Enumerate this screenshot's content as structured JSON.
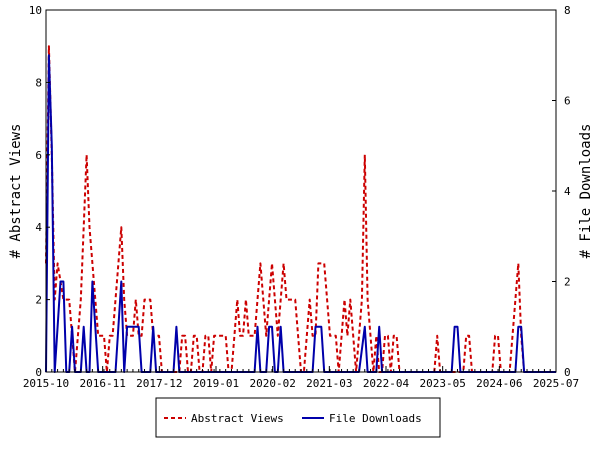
{
  "chart_data": {
    "type": "line",
    "xlabel": "",
    "ylabel_left": "# Abstract Views",
    "ylabel_right": "# File Downloads",
    "x_ticks": [
      "2015-10",
      "2016-11",
      "2017-12",
      "2019-01",
      "2020-02",
      "2021-03",
      "2022-04",
      "2023-05",
      "2024-06",
      "2025-07"
    ],
    "y_left_ticks": [
      "0",
      "2",
      "4",
      "6",
      "8",
      "10"
    ],
    "y_right_ticks": [
      "0",
      "2",
      "4",
      "6",
      "8"
    ],
    "ylim_left": [
      0,
      10
    ],
    "ylim_right": [
      0,
      8
    ],
    "grid": false,
    "legend_position": "bottom",
    "series": [
      {
        "name": "Abstract Views",
        "axis": "left",
        "color": "#cc0000",
        "dash": true,
        "points": [
          [
            0,
            3
          ],
          [
            0.5,
            9
          ],
          [
            1,
            6
          ],
          [
            1.5,
            2
          ],
          [
            2,
            3
          ],
          [
            2.5,
            2.5
          ],
          [
            3,
            2
          ],
          [
            4,
            2
          ],
          [
            4.5,
            1
          ],
          [
            5,
            0
          ],
          [
            5.5,
            1
          ],
          [
            6,
            2
          ],
          [
            6.5,
            4
          ],
          [
            7,
            6
          ],
          [
            7.5,
            4
          ],
          [
            8,
            3
          ],
          [
            8.5,
            2
          ],
          [
            9,
            1
          ],
          [
            10,
            1
          ],
          [
            10.5,
            0
          ],
          [
            11,
            1
          ],
          [
            11.5,
            1
          ],
          [
            12,
            2
          ],
          [
            12.5,
            3
          ],
          [
            13,
            4
          ],
          [
            13.5,
            2
          ],
          [
            14,
            1
          ],
          [
            14.5,
            1
          ],
          [
            15,
            1
          ],
          [
            15.5,
            2
          ],
          [
            16,
            1
          ],
          [
            16.5,
            1
          ],
          [
            17,
            2
          ],
          [
            18,
            2
          ],
          [
            18.5,
            1
          ],
          [
            19,
            1
          ],
          [
            19.5,
            1
          ],
          [
            20,
            0
          ],
          [
            21,
            0
          ],
          [
            22,
            0
          ],
          [
            23,
            0
          ],
          [
            23.5,
            1
          ],
          [
            24,
            1
          ],
          [
            24.5,
            0
          ],
          [
            25,
            0
          ],
          [
            25.5,
            1
          ],
          [
            26,
            1
          ],
          [
            26.5,
            0
          ],
          [
            27,
            0
          ],
          [
            27.5,
            1
          ],
          [
            28,
            1
          ],
          [
            28.5,
            0
          ],
          [
            29,
            1
          ],
          [
            29.5,
            1
          ],
          [
            30,
            1
          ],
          [
            31,
            1
          ],
          [
            31.5,
            0
          ],
          [
            32,
            0
          ],
          [
            32.5,
            1
          ],
          [
            33,
            2
          ],
          [
            33.5,
            1
          ],
          [
            34,
            1
          ],
          [
            34.5,
            2
          ],
          [
            35,
            1
          ],
          [
            35.5,
            1
          ],
          [
            36,
            1
          ],
          [
            36.5,
            2
          ],
          [
            37,
            3
          ],
          [
            37.5,
            2
          ],
          [
            38,
            1
          ],
          [
            38.5,
            2
          ],
          [
            39,
            3
          ],
          [
            39.5,
            2
          ],
          [
            40,
            1
          ],
          [
            40.5,
            2
          ],
          [
            41,
            3
          ],
          [
            41.5,
            2
          ],
          [
            42,
            2
          ],
          [
            42.5,
            2
          ],
          [
            43,
            2
          ],
          [
            44,
            0
          ],
          [
            44.5,
            0
          ],
          [
            45,
            1
          ],
          [
            45.5,
            2
          ],
          [
            46,
            1
          ],
          [
            46.5,
            1
          ],
          [
            47,
            3
          ],
          [
            48,
            3
          ],
          [
            48.5,
            2
          ],
          [
            49,
            1
          ],
          [
            50,
            1
          ],
          [
            50.5,
            0
          ],
          [
            51,
            1
          ],
          [
            51.5,
            2
          ],
          [
            52,
            1
          ],
          [
            52.5,
            2
          ],
          [
            53,
            1
          ],
          [
            53.5,
            0
          ],
          [
            54,
            1
          ],
          [
            54.5,
            2
          ],
          [
            55,
            6
          ],
          [
            55.5,
            2
          ],
          [
            56,
            1
          ],
          [
            56.5,
            0
          ],
          [
            57,
            1
          ],
          [
            57.5,
            0
          ],
          [
            58,
            0
          ],
          [
            58.5,
            1
          ],
          [
            59,
            1
          ],
          [
            59.5,
            0
          ],
          [
            60,
            1
          ],
          [
            60.5,
            1
          ],
          [
            61,
            0
          ],
          [
            62,
            0
          ],
          [
            63,
            0
          ],
          [
            64,
            0
          ],
          [
            65,
            0
          ],
          [
            66,
            0
          ],
          [
            67,
            0
          ],
          [
            67.5,
            1
          ],
          [
            68,
            0
          ],
          [
            69,
            0
          ],
          [
            70,
            0
          ],
          [
            71,
            0
          ],
          [
            72,
            0
          ],
          [
            72.5,
            1
          ],
          [
            73,
            1
          ],
          [
            73.5,
            0
          ],
          [
            74,
            0
          ],
          [
            75,
            0
          ],
          [
            76,
            0
          ],
          [
            77,
            0
          ],
          [
            77.5,
            1
          ],
          [
            78,
            1
          ],
          [
            78.5,
            0
          ],
          [
            79,
            0
          ],
          [
            80,
            0
          ],
          [
            80.5,
            1
          ],
          [
            81,
            2
          ],
          [
            81.5,
            3
          ],
          [
            82,
            1
          ],
          [
            82.5,
            0
          ],
          [
            83,
            0
          ],
          [
            84,
            0
          ],
          [
            85,
            0
          ],
          [
            86,
            0
          ],
          [
            87,
            0
          ],
          [
            88,
            0
          ]
        ]
      },
      {
        "name": "File Downloads",
        "axis": "right",
        "color": "#0000aa",
        "dash": false,
        "points": [
          [
            0,
            0
          ],
          [
            0.5,
            7
          ],
          [
            1,
            5
          ],
          [
            1.5,
            0
          ],
          [
            2,
            1
          ],
          [
            2.5,
            2
          ],
          [
            3,
            2
          ],
          [
            3.5,
            0
          ],
          [
            4,
            0
          ],
          [
            4.5,
            1
          ],
          [
            5,
            0
          ],
          [
            5.5,
            0
          ],
          [
            6,
            0
          ],
          [
            6.5,
            1
          ],
          [
            7,
            0
          ],
          [
            7.5,
            0
          ],
          [
            8,
            2
          ],
          [
            8.5,
            1
          ],
          [
            9,
            0
          ],
          [
            10,
            0
          ],
          [
            10.5,
            0
          ],
          [
            11,
            0
          ],
          [
            11.5,
            0
          ],
          [
            12,
            0
          ],
          [
            12.5,
            1
          ],
          [
            13,
            2
          ],
          [
            13.5,
            0
          ],
          [
            14,
            1
          ],
          [
            15,
            1
          ],
          [
            16,
            1
          ],
          [
            16.5,
            0
          ],
          [
            17,
            0
          ],
          [
            18,
            0
          ],
          [
            18.5,
            1
          ],
          [
            19,
            0
          ],
          [
            20,
            0
          ],
          [
            21,
            0
          ],
          [
            22,
            0
          ],
          [
            22.5,
            1
          ],
          [
            23,
            0
          ],
          [
            24,
            0
          ],
          [
            25,
            0
          ],
          [
            26,
            0
          ],
          [
            27,
            0
          ],
          [
            28,
            0
          ],
          [
            29,
            0
          ],
          [
            30,
            0
          ],
          [
            31,
            0
          ],
          [
            32,
            0
          ],
          [
            33,
            0
          ],
          [
            34,
            0
          ],
          [
            35,
            0
          ],
          [
            36,
            0
          ],
          [
            36.5,
            1
          ],
          [
            37,
            0
          ],
          [
            38,
            0
          ],
          [
            38.5,
            1
          ],
          [
            39,
            1
          ],
          [
            39.5,
            0
          ],
          [
            40,
            0
          ],
          [
            40.5,
            1
          ],
          [
            41,
            0
          ],
          [
            42,
            0
          ],
          [
            43,
            0
          ],
          [
            44,
            0
          ],
          [
            45,
            0
          ],
          [
            46,
            0
          ],
          [
            46.5,
            1
          ],
          [
            47,
            1
          ],
          [
            47.5,
            1
          ],
          [
            48,
            0
          ],
          [
            49,
            0
          ],
          [
            50,
            0
          ],
          [
            51,
            0
          ],
          [
            52,
            0
          ],
          [
            53,
            0
          ],
          [
            54,
            0
          ],
          [
            55,
            1
          ],
          [
            55.5,
            0
          ],
          [
            56,
            0
          ],
          [
            57,
            0
          ],
          [
            57.5,
            1
          ],
          [
            58,
            0
          ],
          [
            59,
            0
          ],
          [
            60,
            0
          ],
          [
            61,
            0
          ],
          [
            62,
            0
          ],
          [
            63,
            0
          ],
          [
            64,
            0
          ],
          [
            65,
            0
          ],
          [
            66,
            0
          ],
          [
            67,
            0
          ],
          [
            68,
            0
          ],
          [
            69,
            0
          ],
          [
            70,
            0
          ],
          [
            70.5,
            1
          ],
          [
            71,
            1
          ],
          [
            71.5,
            0
          ],
          [
            72,
            0
          ],
          [
            73,
            0
          ],
          [
            74,
            0
          ],
          [
            75,
            0
          ],
          [
            76,
            0
          ],
          [
            77,
            0
          ],
          [
            78,
            0
          ],
          [
            79,
            0
          ],
          [
            80,
            0
          ],
          [
            81,
            0
          ],
          [
            81.5,
            1
          ],
          [
            82,
            1
          ],
          [
            82.5,
            0
          ],
          [
            83,
            0
          ],
          [
            84,
            0
          ],
          [
            85,
            0
          ],
          [
            86,
            0
          ],
          [
            87,
            0
          ],
          [
            88,
            0
          ]
        ]
      }
    ]
  }
}
